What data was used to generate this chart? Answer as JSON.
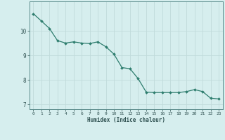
{
  "x": [
    0,
    1,
    2,
    3,
    4,
    5,
    6,
    7,
    8,
    9,
    10,
    11,
    12,
    13,
    14,
    15,
    16,
    17,
    18,
    19,
    20,
    21,
    22,
    23
  ],
  "y": [
    10.7,
    10.4,
    10.1,
    9.6,
    9.5,
    9.55,
    9.5,
    9.48,
    9.55,
    9.35,
    9.05,
    8.5,
    8.45,
    8.05,
    7.5,
    7.48,
    7.48,
    7.48,
    7.48,
    7.52,
    7.6,
    7.52,
    7.25,
    7.22
  ],
  "xlabel": "Humidex (Indice chaleur)",
  "line_color": "#2e7d6e",
  "marker": "D",
  "marker_size": 2.0,
  "bg_color": "#d6eeee",
  "grid_color": "#c0dada",
  "axes_color": "#5a8a8a",
  "tick_color": "#2e5050",
  "ylim": [
    6.8,
    11.2
  ],
  "xlim": [
    -0.5,
    23.5
  ],
  "yticks": [
    7,
    8,
    9,
    10
  ],
  "xticks": [
    0,
    1,
    2,
    3,
    4,
    5,
    6,
    7,
    8,
    9,
    10,
    11,
    12,
    13,
    14,
    15,
    16,
    17,
    18,
    19,
    20,
    21,
    22,
    23
  ]
}
